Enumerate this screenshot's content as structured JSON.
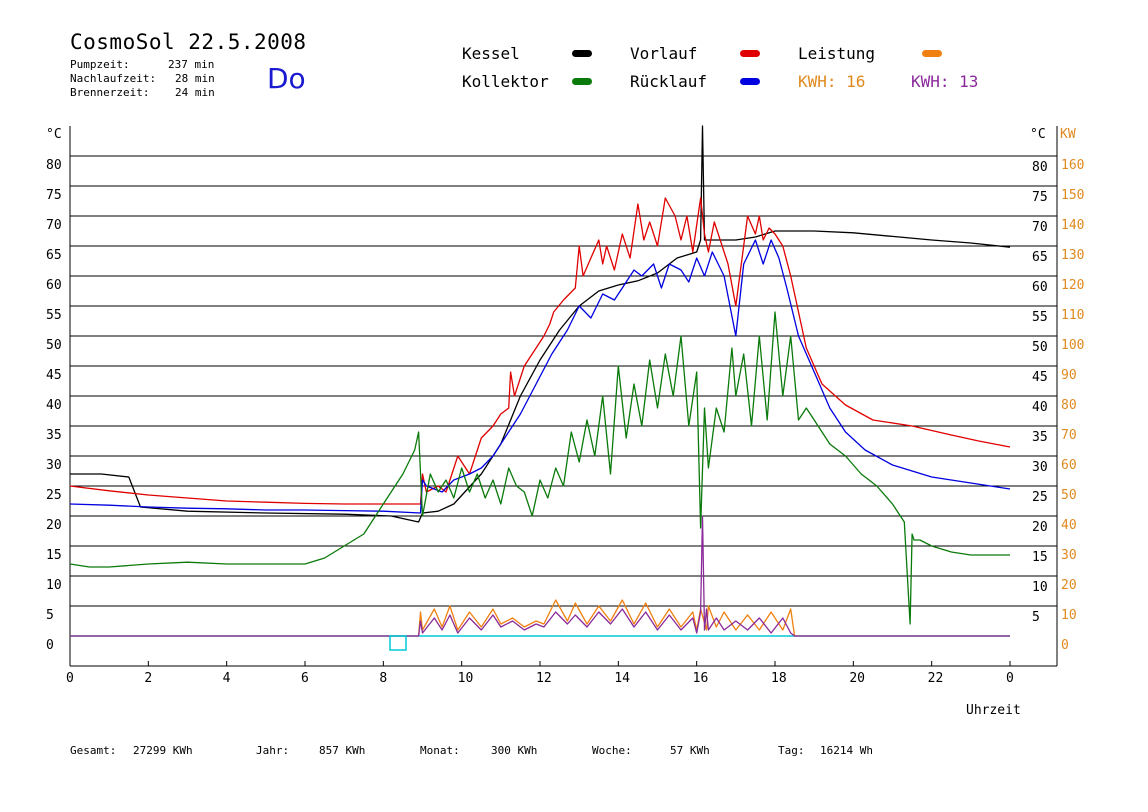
{
  "header": {
    "title": "CosmoSol 22.5.2008",
    "day": "Do",
    "stats": [
      {
        "label": "Pumpzeit:",
        "value": "237 min"
      },
      {
        "label": "Nachlaufzeit:",
        "value": "28 min"
      },
      {
        "label": "Brennerzeit:",
        "value": "24 min"
      }
    ]
  },
  "legend": {
    "items": [
      {
        "label": "Kessel",
        "color": "#000000"
      },
      {
        "label": "Vorlauf",
        "color": "#e00000"
      },
      {
        "label": "Leistung",
        "color": "#f08010"
      },
      {
        "label": "Kollektor",
        "color": "#0a7a0a"
      },
      {
        "label": "Rücklauf",
        "color": "#0000e0"
      }
    ],
    "kwh": [
      {
        "label": "KWH:",
        "value": "16",
        "color": "#e08a20"
      },
      {
        "label": "KWH:",
        "value": "13",
        "color": "#8a2a9a"
      }
    ]
  },
  "footer": {
    "items": [
      {
        "label": "Gesamt:",
        "value": "27299 KWh"
      },
      {
        "label": "Jahr:",
        "value": "857 KWh"
      },
      {
        "label": "Monat:",
        "value": "300 KWh"
      },
      {
        "label": "Woche:",
        "value": "57 KWh"
      },
      {
        "label": "Tag:",
        "value": "16214 Wh"
      }
    ]
  },
  "chart_data": {
    "type": "line",
    "xlabel": "Uhrzeit",
    "ylabel_left": "°C",
    "ylabel_right_1": "°C",
    "ylabel_right_2": "KW",
    "xlim": [
      0,
      24
    ],
    "ylim": [
      -5,
      85
    ],
    "y2lim": [
      -10,
      170
    ],
    "x_ticks": [
      "0",
      "2",
      "4",
      "6",
      "8",
      "10",
      "12",
      "14",
      "16",
      "18",
      "20",
      "22",
      "0"
    ],
    "y_ticks": [
      0,
      5,
      10,
      15,
      20,
      25,
      30,
      35,
      40,
      45,
      50,
      55,
      60,
      65,
      70,
      75,
      80
    ],
    "y2_ticks": [
      0,
      10,
      20,
      30,
      40,
      50,
      60,
      70,
      80,
      90,
      100,
      110,
      120,
      130,
      140,
      150,
      160
    ],
    "grid": true,
    "series": [
      {
        "name": "Kessel",
        "color": "#000000",
        "x": [
          0,
          0.8,
          1.5,
          1.8,
          3,
          5,
          7,
          8.2,
          8.9,
          9.0,
          9.4,
          9.8,
          10.5,
          11,
          11.5,
          12,
          12.5,
          13,
          13.5,
          14,
          14.5,
          15,
          15.5,
          16.0,
          16.1,
          16.15,
          16.2,
          16.25,
          16.4,
          17,
          17.5,
          18,
          19,
          20,
          21,
          22,
          23,
          24
        ],
        "y": [
          27,
          27,
          26.5,
          21.5,
          20.8,
          20.5,
          20.3,
          20.0,
          19,
          20.5,
          20.8,
          22,
          27,
          32,
          40,
          46,
          51,
          55,
          57.5,
          58.5,
          59.2,
          60.5,
          63,
          64,
          66,
          85,
          66,
          66,
          66,
          66,
          66.5,
          67.5,
          67.5,
          67.2,
          66.6,
          66,
          65.5,
          64.8
        ]
      },
      {
        "name": "Vorlauf",
        "color": "#e00000",
        "x": [
          0,
          1,
          2,
          3,
          4,
          5,
          6,
          7,
          8,
          8.95,
          9.0,
          9.1,
          9.4,
          9.6,
          9.9,
          10.2,
          10.5,
          10.8,
          11.0,
          11.2,
          11.25,
          11.35,
          11.6,
          11.9,
          12.1,
          12.25,
          12.35,
          12.6,
          12.9,
          13.0,
          13.1,
          13.3,
          13.5,
          13.6,
          13.7,
          13.9,
          14.1,
          14.3,
          14.5,
          14.65,
          14.8,
          15.0,
          15.2,
          15.45,
          15.6,
          15.75,
          15.9,
          16.1,
          16.2,
          16.3,
          16.45,
          16.6,
          16.8,
          17.0,
          17.3,
          17.5,
          17.6,
          17.7,
          17.85,
          18.0,
          18.2,
          18.4,
          18.8,
          19.2,
          19.8,
          20.5,
          21.5,
          22.5,
          23.2,
          24
        ],
        "y": [
          25,
          24.2,
          23.5,
          23.0,
          22.5,
          22.3,
          22.1,
          22.0,
          22.0,
          22.0,
          27,
          24,
          25,
          24,
          30,
          27,
          33,
          35,
          37,
          38,
          44,
          40,
          45,
          48,
          50,
          52,
          54,
          56,
          58,
          65,
          60,
          63,
          66,
          62,
          65,
          61,
          67,
          63,
          72,
          66,
          69,
          65,
          73,
          70,
          66,
          70,
          64,
          73,
          67,
          64,
          69,
          66,
          62,
          55,
          70,
          67,
          70,
          66,
          68,
          67,
          65,
          60,
          48,
          42,
          38.5,
          36,
          35,
          33.5,
          32.5,
          31.5
        ]
      },
      {
        "name": "Rücklauf",
        "color": "#0000e0",
        "x": [
          0,
          1,
          2,
          3,
          4,
          5,
          6,
          7,
          8,
          8.95,
          9.0,
          9.1,
          9.5,
          9.8,
          10.2,
          10.5,
          10.8,
          11.1,
          11.5,
          11.9,
          12.3,
          12.7,
          13.0,
          13.3,
          13.6,
          13.9,
          14.2,
          14.4,
          14.6,
          14.9,
          15.1,
          15.3,
          15.6,
          15.8,
          16.0,
          16.2,
          16.4,
          16.7,
          17.0,
          17.2,
          17.5,
          17.7,
          17.9,
          18.1,
          18.3,
          18.6,
          19.0,
          19.4,
          19.8,
          20.3,
          21,
          22,
          23,
          24
        ],
        "y": [
          22,
          21.8,
          21.5,
          21.3,
          21.2,
          21.0,
          21.0,
          20.9,
          20.8,
          20.5,
          26,
          25,
          24,
          26,
          27,
          28,
          30,
          33,
          37,
          42,
          47,
          51,
          55,
          53,
          57,
          56,
          59,
          61,
          60,
          62,
          58,
          62,
          61,
          59,
          63,
          60,
          64,
          60,
          50,
          62,
          66,
          62,
          66,
          63,
          58,
          50,
          44,
          38,
          34,
          31,
          28.5,
          26.5,
          25.5,
          24.5
        ]
      },
      {
        "name": "Kollektor",
        "color": "#0a7a0a",
        "x": [
          0,
          0.5,
          1,
          2,
          3,
          4,
          5,
          6,
          6.5,
          7,
          7.5,
          8,
          8.5,
          8.8,
          8.9,
          9.0,
          9.2,
          9.4,
          9.6,
          9.8,
          10.0,
          10.2,
          10.4,
          10.6,
          10.8,
          11.0,
          11.2,
          11.4,
          11.6,
          11.8,
          12.0,
          12.2,
          12.4,
          12.6,
          12.8,
          13.0,
          13.2,
          13.4,
          13.6,
          13.8,
          14.0,
          14.2,
          14.4,
          14.6,
          14.8,
          15.0,
          15.2,
          15.4,
          15.6,
          15.8,
          16.0,
          16.1,
          16.2,
          16.3,
          16.5,
          16.7,
          16.9,
          17.0,
          17.2,
          17.4,
          17.6,
          17.8,
          18.0,
          18.2,
          18.4,
          18.6,
          18.8,
          19.0,
          19.4,
          19.8,
          20.2,
          20.6,
          21.0,
          21.3,
          21.45,
          21.5,
          21.55,
          21.7,
          22.0,
          22.5,
          23,
          23.5,
          24
        ],
        "y": [
          12,
          11.5,
          11.5,
          12,
          12.3,
          12,
          12,
          12,
          13,
          15,
          17,
          22,
          27,
          31,
          34,
          20,
          27,
          24,
          26,
          23,
          28,
          24,
          27,
          23,
          26,
          22,
          28,
          25,
          24,
          20,
          26,
          23,
          28,
          25,
          34,
          29,
          36,
          30,
          40,
          27,
          45,
          33,
          42,
          35,
          46,
          38,
          47,
          40,
          50,
          35,
          44,
          18,
          38,
          28,
          38,
          34,
          48,
          40,
          47,
          35,
          50,
          36,
          54,
          40,
          50,
          36,
          38,
          36,
          32,
          30,
          27,
          25,
          22,
          19,
          2,
          17,
          16,
          16,
          15,
          14,
          13.5,
          13.5,
          13.5
        ]
      },
      {
        "name": "Leistung",
        "color": "#f08010",
        "axis": "right_kw",
        "x": [
          0,
          8.9,
          8.95,
          9.0,
          9.3,
          9.5,
          9.7,
          9.9,
          10.2,
          10.5,
          10.8,
          11.0,
          11.3,
          11.6,
          11.9,
          12.1,
          12.4,
          12.7,
          12.9,
          13.2,
          13.5,
          13.8,
          14.1,
          14.4,
          14.7,
          15.0,
          15.3,
          15.6,
          15.9,
          16.0,
          16.1,
          16.25,
          16.3,
          16.5,
          16.7,
          17.0,
          17.3,
          17.6,
          17.9,
          18.2,
          18.4,
          18.5,
          24
        ],
        "y": [
          0,
          0,
          8,
          2,
          9,
          3,
          10,
          2,
          8,
          3,
          9,
          4,
          6,
          3,
          5,
          4,
          12,
          5,
          11,
          4,
          10,
          5,
          12,
          4,
          11,
          3,
          9,
          3,
          8,
          2,
          9,
          2,
          10,
          3,
          8,
          2,
          7,
          2,
          8,
          2,
          9,
          0,
          0
        ]
      },
      {
        "name": "",
        "color": "#8a2a9a",
        "axis": "right_kw",
        "x": [
          0,
          8.9,
          8.95,
          9.0,
          9.3,
          9.5,
          9.7,
          9.9,
          10.2,
          10.5,
          10.8,
          11.0,
          11.3,
          11.6,
          11.9,
          12.1,
          12.4,
          12.7,
          12.9,
          13.2,
          13.5,
          13.8,
          14.1,
          14.4,
          14.7,
          15.0,
          15.3,
          15.6,
          15.9,
          16.0,
          16.1,
          16.15,
          16.2,
          16.25,
          16.3,
          16.5,
          16.7,
          17.0,
          17.3,
          17.6,
          17.9,
          18.2,
          18.4,
          18.5,
          24
        ],
        "y": [
          0,
          0,
          5,
          1,
          6,
          2,
          7,
          1,
          6,
          2,
          7,
          3,
          5,
          2,
          4,
          3,
          8,
          4,
          7,
          3,
          8,
          4,
          9,
          3,
          8,
          2,
          7,
          2,
          6,
          1,
          8,
          40,
          2,
          9,
          2,
          6,
          2,
          5,
          2,
          6,
          1,
          6,
          1,
          0,
          0
        ]
      }
    ]
  }
}
